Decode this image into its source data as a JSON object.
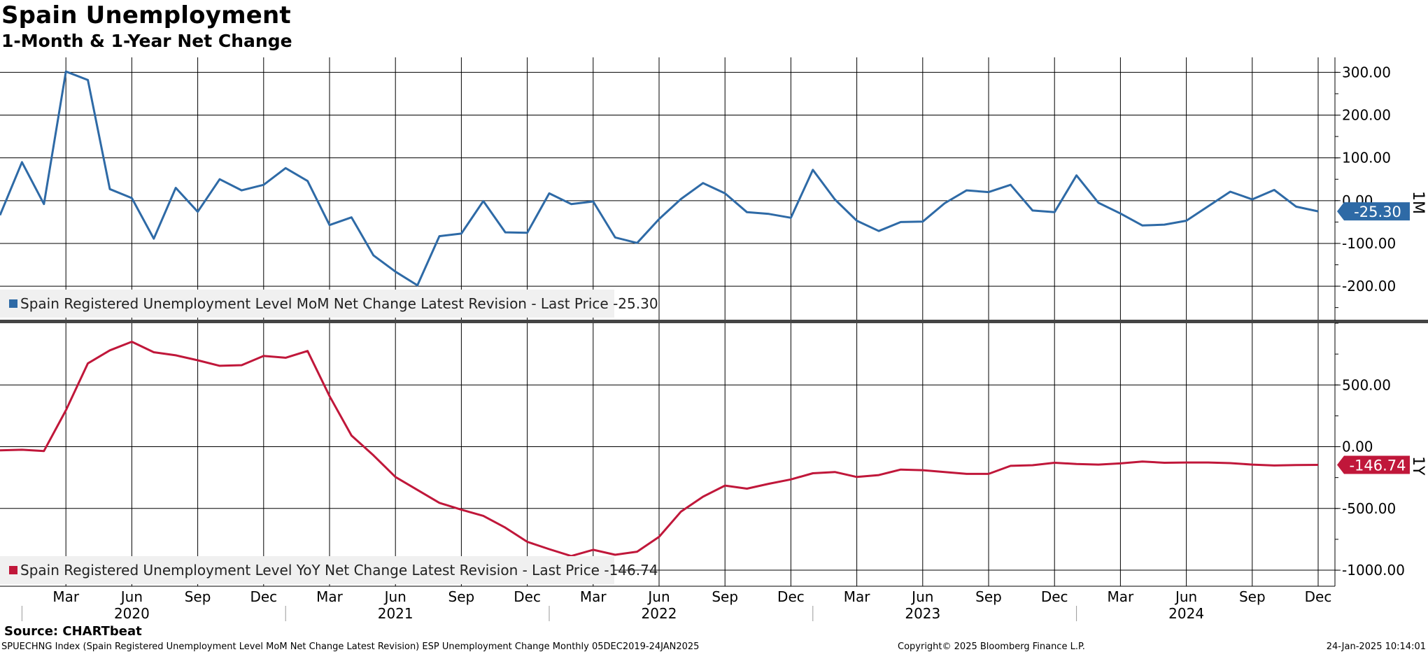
{
  "header": {
    "title": "Spain Unemployment",
    "subtitle": "1-Month & 1-Year Net Change"
  },
  "colors": {
    "mom": "#2e6aa6",
    "yoy": "#c0173a",
    "grid": "#000000"
  },
  "chart_data": [
    {
      "type": "line",
      "panel_label": "1M",
      "yticks": [
        300,
        200,
        100,
        0,
        -100,
        -200
      ],
      "ytick_labels": [
        "300.00",
        "200.00",
        "100.00",
        "0.00",
        "-100.00",
        "-200.00"
      ],
      "ylim": [
        -280,
        335
      ],
      "last_value_label": "-25.30",
      "legend": "Spain Registered Unemployment Level MoM Net Change Latest Revision - Last Price -25.30",
      "legend_placement": "bottom-left",
      "grid": true,
      "series": [
        {
          "name": "Spain Registered Unemployment Level MoM Net Change Latest Revision",
          "x": [
            "2019-12",
            "2020-01",
            "2020-02",
            "2020-03",
            "2020-04",
            "2020-05",
            "2020-06",
            "2020-07",
            "2020-08",
            "2020-09",
            "2020-10",
            "2020-11",
            "2020-12",
            "2021-01",
            "2021-02",
            "2021-03",
            "2021-04",
            "2021-05",
            "2021-06",
            "2021-07",
            "2021-08",
            "2021-09",
            "2021-10",
            "2021-11",
            "2021-12",
            "2022-01",
            "2022-02",
            "2022-03",
            "2022-04",
            "2022-05",
            "2022-06",
            "2022-07",
            "2022-08",
            "2022-09",
            "2022-10",
            "2022-11",
            "2022-12",
            "2023-01",
            "2023-02",
            "2023-03",
            "2023-04",
            "2023-05",
            "2023-06",
            "2023-07",
            "2023-08",
            "2023-09",
            "2023-10",
            "2023-11",
            "2023-12",
            "2024-01",
            "2024-02",
            "2024-03",
            "2024-04",
            "2024-05",
            "2024-06",
            "2024-07",
            "2024-08",
            "2024-09",
            "2024-10",
            "2024-11",
            "2024-12"
          ],
          "values": [
            -34,
            90,
            -8,
            302,
            282,
            27,
            6,
            -89,
            30,
            -26,
            50,
            24,
            37,
            76,
            46,
            -57,
            -39,
            -128,
            -166,
            -198,
            -83,
            -77,
            -1,
            -74,
            -75,
            17,
            -8,
            -2,
            -86,
            -99,
            -43,
            4,
            41,
            17,
            -27,
            -31,
            -40,
            72,
            3,
            -47,
            -71,
            -50,
            -49,
            -6,
            24,
            20,
            37,
            -23,
            -27,
            59,
            -5,
            -30,
            -58,
            -56,
            -47,
            -13,
            21,
            3,
            25,
            -14,
            -25
          ]
        }
      ]
    },
    {
      "type": "line",
      "panel_label": "1Y",
      "yticks": [
        500,
        0,
        -500,
        -1000
      ],
      "ytick_labels": [
        "500.00",
        "0.00",
        "-500.00",
        "-1000.00"
      ],
      "ylim": [
        -1130,
        1000
      ],
      "last_value_label": "-146.74",
      "legend": "Spain Registered Unemployment Level YoY Net Change Latest Revision - Last Price -146.74",
      "legend_placement": "bottom-left",
      "grid": true,
      "series": [
        {
          "name": "Spain Registered Unemployment Level YoY Net Change Latest Revision",
          "x": [
            "2019-12",
            "2020-01",
            "2020-02",
            "2020-03",
            "2020-04",
            "2020-05",
            "2020-06",
            "2020-07",
            "2020-08",
            "2020-09",
            "2020-10",
            "2020-11",
            "2020-12",
            "2021-01",
            "2021-02",
            "2021-03",
            "2021-04",
            "2021-05",
            "2021-06",
            "2021-07",
            "2021-08",
            "2021-09",
            "2021-10",
            "2021-11",
            "2021-12",
            "2022-01",
            "2022-02",
            "2022-03",
            "2022-04",
            "2022-05",
            "2022-06",
            "2022-07",
            "2022-08",
            "2022-09",
            "2022-10",
            "2022-11",
            "2022-12",
            "2023-01",
            "2023-02",
            "2023-03",
            "2023-04",
            "2023-05",
            "2023-06",
            "2023-07",
            "2023-08",
            "2023-09",
            "2023-10",
            "2023-11",
            "2023-12",
            "2024-01",
            "2024-02",
            "2024-03",
            "2024-04",
            "2024-05",
            "2024-06",
            "2024-07",
            "2024-08",
            "2024-09",
            "2024-10",
            "2024-11",
            "2024-12"
          ],
          "values": [
            -30,
            -25,
            -35,
            295,
            675,
            780,
            850,
            765,
            740,
            700,
            655,
            660,
            735,
            720,
            775,
            410,
            90,
            -70,
            -245,
            -350,
            -455,
            -510,
            -560,
            -655,
            -770,
            -830,
            -885,
            -835,
            -875,
            -850,
            -730,
            -525,
            -405,
            -315,
            -340,
            -300,
            -265,
            -215,
            -205,
            -245,
            -230,
            -185,
            -190,
            -205,
            -220,
            -220,
            -155,
            -150,
            -130,
            -140,
            -145,
            -135,
            -120,
            -130,
            -128,
            -128,
            -133,
            -145,
            -152,
            -148,
            -147
          ]
        }
      ]
    }
  ],
  "x_axis": {
    "month_labels": [
      "Mar",
      "Jun",
      "Sep",
      "Dec",
      "Mar",
      "Jun",
      "Sep",
      "Dec",
      "Mar",
      "Jun",
      "Sep",
      "Dec",
      "Mar",
      "Jun",
      "Sep",
      "Dec",
      "Mar",
      "Jun",
      "Sep",
      "Dec"
    ],
    "month_positions": [
      "2020-03",
      "2020-06",
      "2020-09",
      "2020-12",
      "2021-03",
      "2021-06",
      "2021-09",
      "2021-12",
      "2022-03",
      "2022-06",
      "2022-09",
      "2022-12",
      "2023-03",
      "2023-06",
      "2023-09",
      "2023-12",
      "2024-03",
      "2024-06",
      "2024-09",
      "2024-12"
    ],
    "year_labels": [
      "2020",
      "2021",
      "2022",
      "2023",
      "2024"
    ],
    "year_positions": [
      "2020-06",
      "2021-06",
      "2022-06",
      "2023-06",
      "2024-06"
    ]
  },
  "footer": {
    "source": "Source: CHARTbeat",
    "index_line": "SPUECHNG Index (Spain Registered Unemployment Level MoM Net Change Latest Revision) ESP Unemployment Change  Monthly 05DEC2019-24JAN2025",
    "copyright": "Copyright© 2025 Bloomberg Finance L.P.",
    "timestamp": "24-Jan-2025 10:14:01"
  }
}
